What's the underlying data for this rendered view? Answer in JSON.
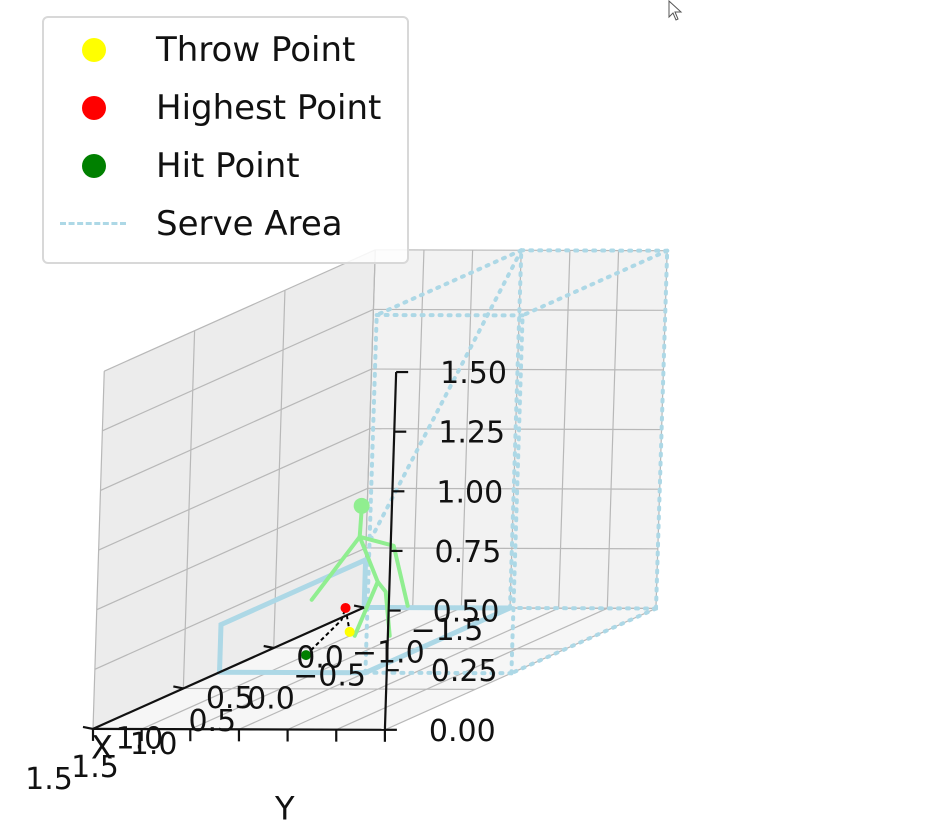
{
  "chart_data": {
    "type": "3d-line-scatter",
    "xlabel": "X",
    "ylabel": "Y",
    "zlabel": "",
    "x_ticks": [
      "0.0",
      "0.5",
      "1.0",
      "1.5"
    ],
    "y_ticks": [
      "1.5",
      "1.0",
      "0.5",
      "0.0",
      "−0.5",
      "−1.0",
      "−1.5"
    ],
    "z_ticks": [
      "0.00",
      "0.25",
      "0.50",
      "0.75",
      "1.00",
      "1.25",
      "1.50"
    ],
    "xlim": [
      0,
      1.5
    ],
    "ylim": [
      -1.5,
      1.5
    ],
    "zlim": [
      0,
      1.5
    ],
    "grid": true,
    "legend_location": "top-left",
    "legend": [
      {
        "label": "Throw Point",
        "marker": "dot",
        "color": "#ffff00"
      },
      {
        "label": "Highest Point",
        "marker": "dot",
        "color": "#ff0000"
      },
      {
        "label": "Hit Point",
        "marker": "dot",
        "color": "#008000"
      },
      {
        "label": "Serve Area",
        "marker": "dashed-line",
        "color": "#add8e6"
      }
    ],
    "points": {
      "throw_point": {
        "x": 0.65,
        "y": 0.45,
        "z": 0.12
      },
      "highest_point": {
        "x": 0.65,
        "y": 0.5,
        "z": 0.22
      },
      "hit_point": {
        "x": 0.82,
        "y": 0.58,
        "z": 0.08
      }
    },
    "serve_area": {
      "solid_rectangle_bottom": [
        [
          0,
          1.5,
          0
        ],
        [
          0,
          0,
          0
        ],
        [
          0.8,
          0,
          0
        ],
        [
          0.8,
          1.5,
          0
        ]
      ],
      "solid_rectangle_wall": [
        [
          0,
          1.5,
          0
        ],
        [
          0,
          1.5,
          0.2
        ],
        [
          0.8,
          1.5,
          0.2
        ],
        [
          0.8,
          1.5,
          0
        ]
      ],
      "dotted_box": {
        "x": [
          0,
          0.8
        ],
        "y": [
          -1.5,
          0
        ],
        "z": [
          0,
          1.5
        ]
      }
    },
    "skeleton_color": "#90ee90",
    "ball_trajectory_color": "#000000"
  },
  "colors": {
    "pane_left": "#ececec",
    "pane_back": "#f2f2f2",
    "pane_floor": "#f6f6f6",
    "grid": "#b8b8b8",
    "serve_area": "#add8e6",
    "skeleton": "#90ee90"
  },
  "ui": {
    "cursor_icon": "arrow-cursor-icon"
  }
}
